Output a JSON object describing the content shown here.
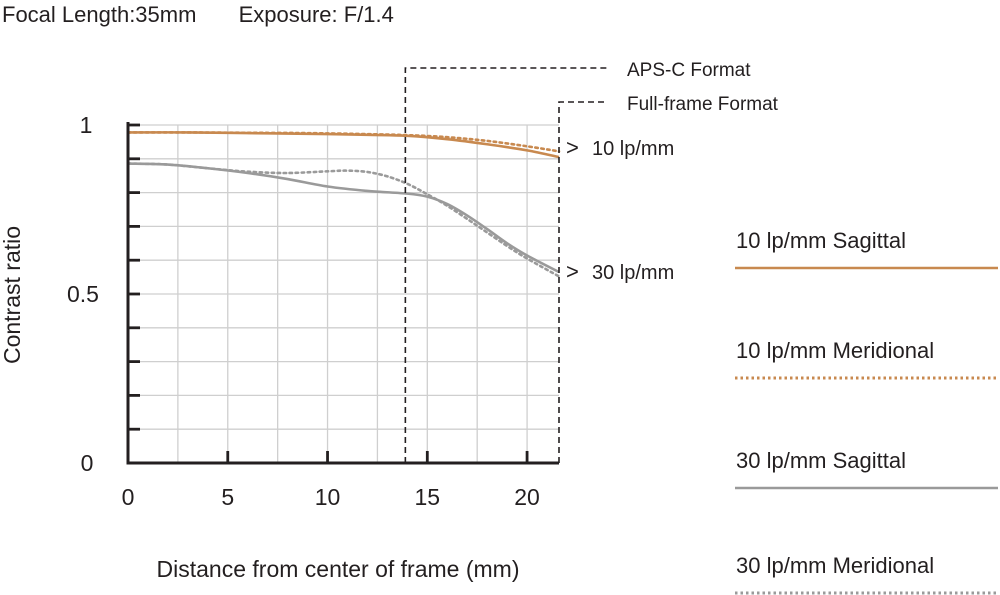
{
  "header": {
    "focal_length": "Focal Length:35mm",
    "exposure": "Exposure: F/1.4"
  },
  "chart_data": {
    "type": "line",
    "title": "",
    "xlabel": "Distance from center of frame (mm)",
    "ylabel": "Contrast ratio",
    "xlim": [
      0,
      21.6
    ],
    "ylim": [
      0,
      1
    ],
    "xticks": [
      0,
      5,
      10,
      15,
      20
    ],
    "xtick_labels": [
      "0",
      "5",
      "10",
      "15",
      "20"
    ],
    "yticks": [
      0,
      0.5,
      1
    ],
    "ytick_labels": [
      "0",
      "0.5",
      "1"
    ],
    "grid": true,
    "legend_position": "right",
    "series": [
      {
        "name": "10 lp/mm Sagittal",
        "color": "#c8894f",
        "dash": "solid",
        "x": [
          0,
          3,
          6,
          9,
          12,
          14,
          16,
          18,
          20,
          21.6
        ],
        "y": [
          0.978,
          0.978,
          0.976,
          0.974,
          0.971,
          0.968,
          0.958,
          0.943,
          0.925,
          0.905
        ]
      },
      {
        "name": "10 lp/mm Meridional",
        "color": "#c8894f",
        "dash": "dotted",
        "x": [
          0,
          3,
          6,
          9,
          12,
          14,
          16,
          18,
          20,
          21.6
        ],
        "y": [
          0.978,
          0.978,
          0.977,
          0.976,
          0.973,
          0.97,
          0.964,
          0.953,
          0.937,
          0.922
        ]
      },
      {
        "name": "30 lp/mm Sagittal",
        "color": "#9a9a9a",
        "dash": "solid",
        "x": [
          0,
          2,
          4,
          6,
          8,
          10,
          12,
          14,
          15,
          16,
          17,
          18,
          19,
          20,
          21.6
        ],
        "y": [
          0.886,
          0.883,
          0.872,
          0.858,
          0.84,
          0.818,
          0.805,
          0.797,
          0.788,
          0.766,
          0.732,
          0.692,
          0.65,
          0.614,
          0.565
        ]
      },
      {
        "name": "30 lp/mm Meridional",
        "color": "#9a9a9a",
        "dash": "dotted",
        "x": [
          0,
          2,
          4,
          6,
          8,
          10,
          11,
          12,
          13,
          14,
          15,
          16,
          17,
          18,
          19,
          20,
          21.6
        ],
        "y": [
          0.886,
          0.883,
          0.872,
          0.862,
          0.858,
          0.863,
          0.865,
          0.861,
          0.848,
          0.826,
          0.795,
          0.761,
          0.722,
          0.682,
          0.642,
          0.605,
          0.552
        ]
      }
    ],
    "annotations": {
      "apsc_x": 13.9,
      "fullframe_x": 21.6,
      "apsc_label": "APS-C Format",
      "fullframe_label": "Full-frame Format",
      "label_10": "10 lp/mm",
      "label_30": "30 lp/mm",
      "arrow_glyph": ">"
    }
  }
}
